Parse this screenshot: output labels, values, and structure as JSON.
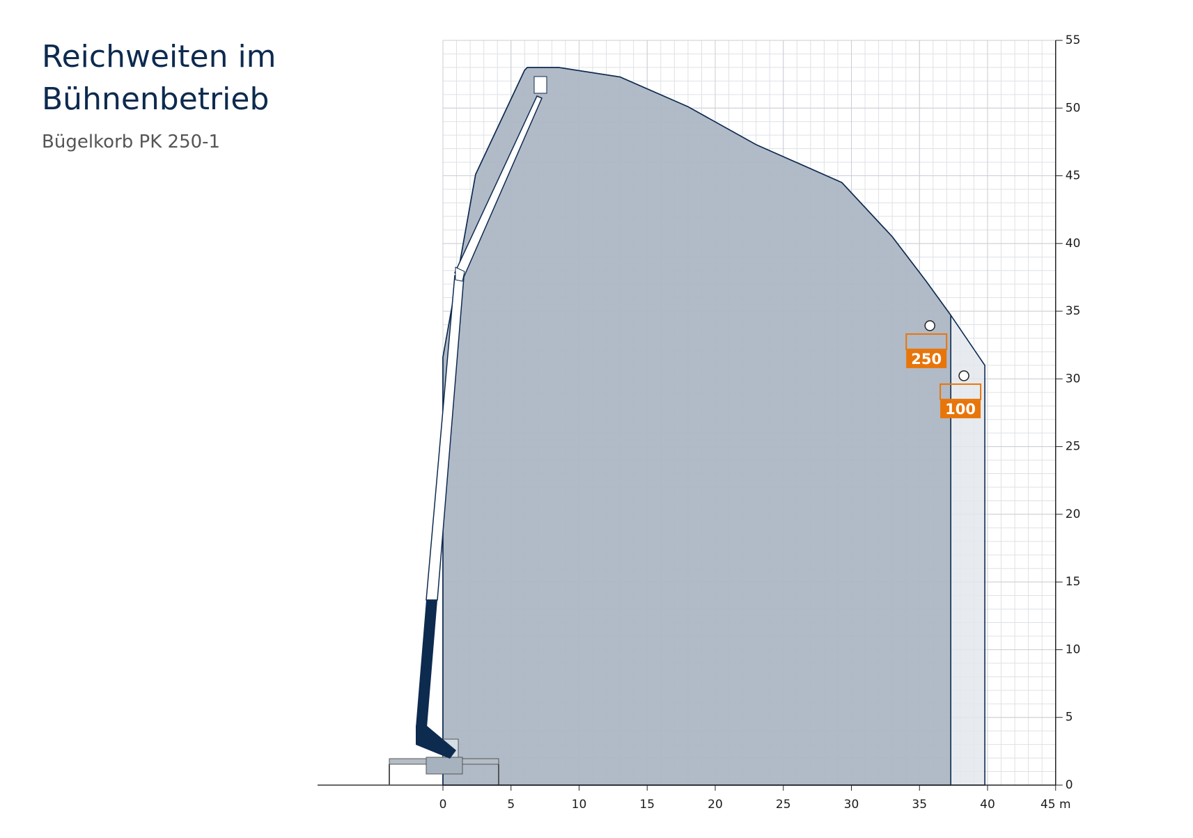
{
  "chart_data": {
    "type": "area",
    "title": [
      "Reichweiten im",
      "Bühnenbetrieb"
    ],
    "subtitle": "Bügelkorb PK 250-1",
    "series": [
      {
        "name": "100",
        "color": "#e3e7ec",
        "x": [
          0,
          0,
          2.4,
          6.0,
          6.2,
          8.5,
          13,
          18,
          23,
          29.3,
          33,
          35.5,
          37.3,
          39.8,
          39.8
        ],
        "values": [
          0,
          31.6,
          45.1,
          52.8,
          53,
          53,
          52.3,
          50.1,
          47.3,
          44.5,
          40.5,
          37.2,
          34.7,
          31,
          0
        ]
      },
      {
        "name": "250",
        "color": "#a7b2bf",
        "x": [
          0,
          0,
          2.4,
          6.0,
          6.2,
          8.5,
          13,
          18,
          23,
          29.3,
          33,
          35.5,
          37.3,
          37.3
        ],
        "values": [
          0,
          31.6,
          45.1,
          52.8,
          53,
          53,
          52.3,
          50.1,
          47.3,
          44.5,
          40.5,
          37.2,
          34.7,
          0
        ]
      }
    ],
    "xlim": [
      0,
      45
    ],
    "ylim": [
      0,
      55
    ],
    "xticks": [
      0,
      5,
      10,
      15,
      20,
      25,
      30,
      35,
      40,
      {
        "value": 45,
        "label": "45 m"
      }
    ],
    "yticks": [
      0,
      5,
      10,
      15,
      20,
      25,
      30,
      35,
      40,
      45,
      50,
      55
    ],
    "grid": true
  }
}
